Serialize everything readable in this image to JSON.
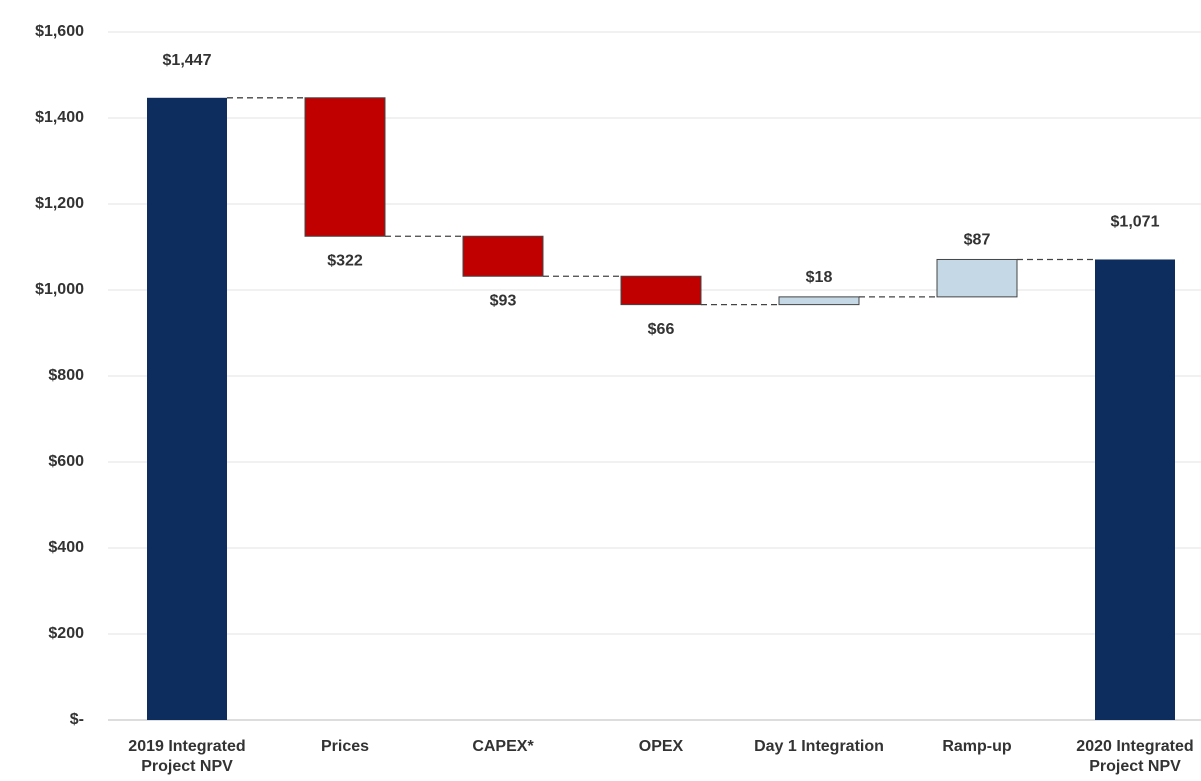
{
  "chart_data": {
    "type": "waterfall",
    "categories": [
      "2019 Integrated Project NPV",
      "Prices",
      "CAPEX*",
      "OPEX",
      "Day 1 Integration",
      "Ramp-up",
      "2020 Integrated Project NPV"
    ],
    "values": [
      1447,
      -322,
      -93,
      -66,
      18,
      87,
      1071
    ],
    "value_labels": [
      "$1,447",
      "$322",
      "$93",
      "$66",
      "$18",
      "$87",
      "$1,071"
    ],
    "colors": {
      "total": "#0d2d5e",
      "decrease": "#c00000",
      "increase": "#c5d8e6"
    },
    "ylim": [
      0,
      1600
    ],
    "yticks": [
      {
        "value": 0,
        "label": "$-"
      },
      {
        "value": 200,
        "label": "$200"
      },
      {
        "value": 400,
        "label": "$400"
      },
      {
        "value": 600,
        "label": "$600"
      },
      {
        "value": 800,
        "label": "$800"
      },
      {
        "value": 1000,
        "label": "$1,000"
      },
      {
        "value": 1200,
        "label": "$1,200"
      },
      {
        "value": 1400,
        "label": "$1,400"
      },
      {
        "value": 1600,
        "label": "$1,600"
      }
    ],
    "grid": true
  }
}
